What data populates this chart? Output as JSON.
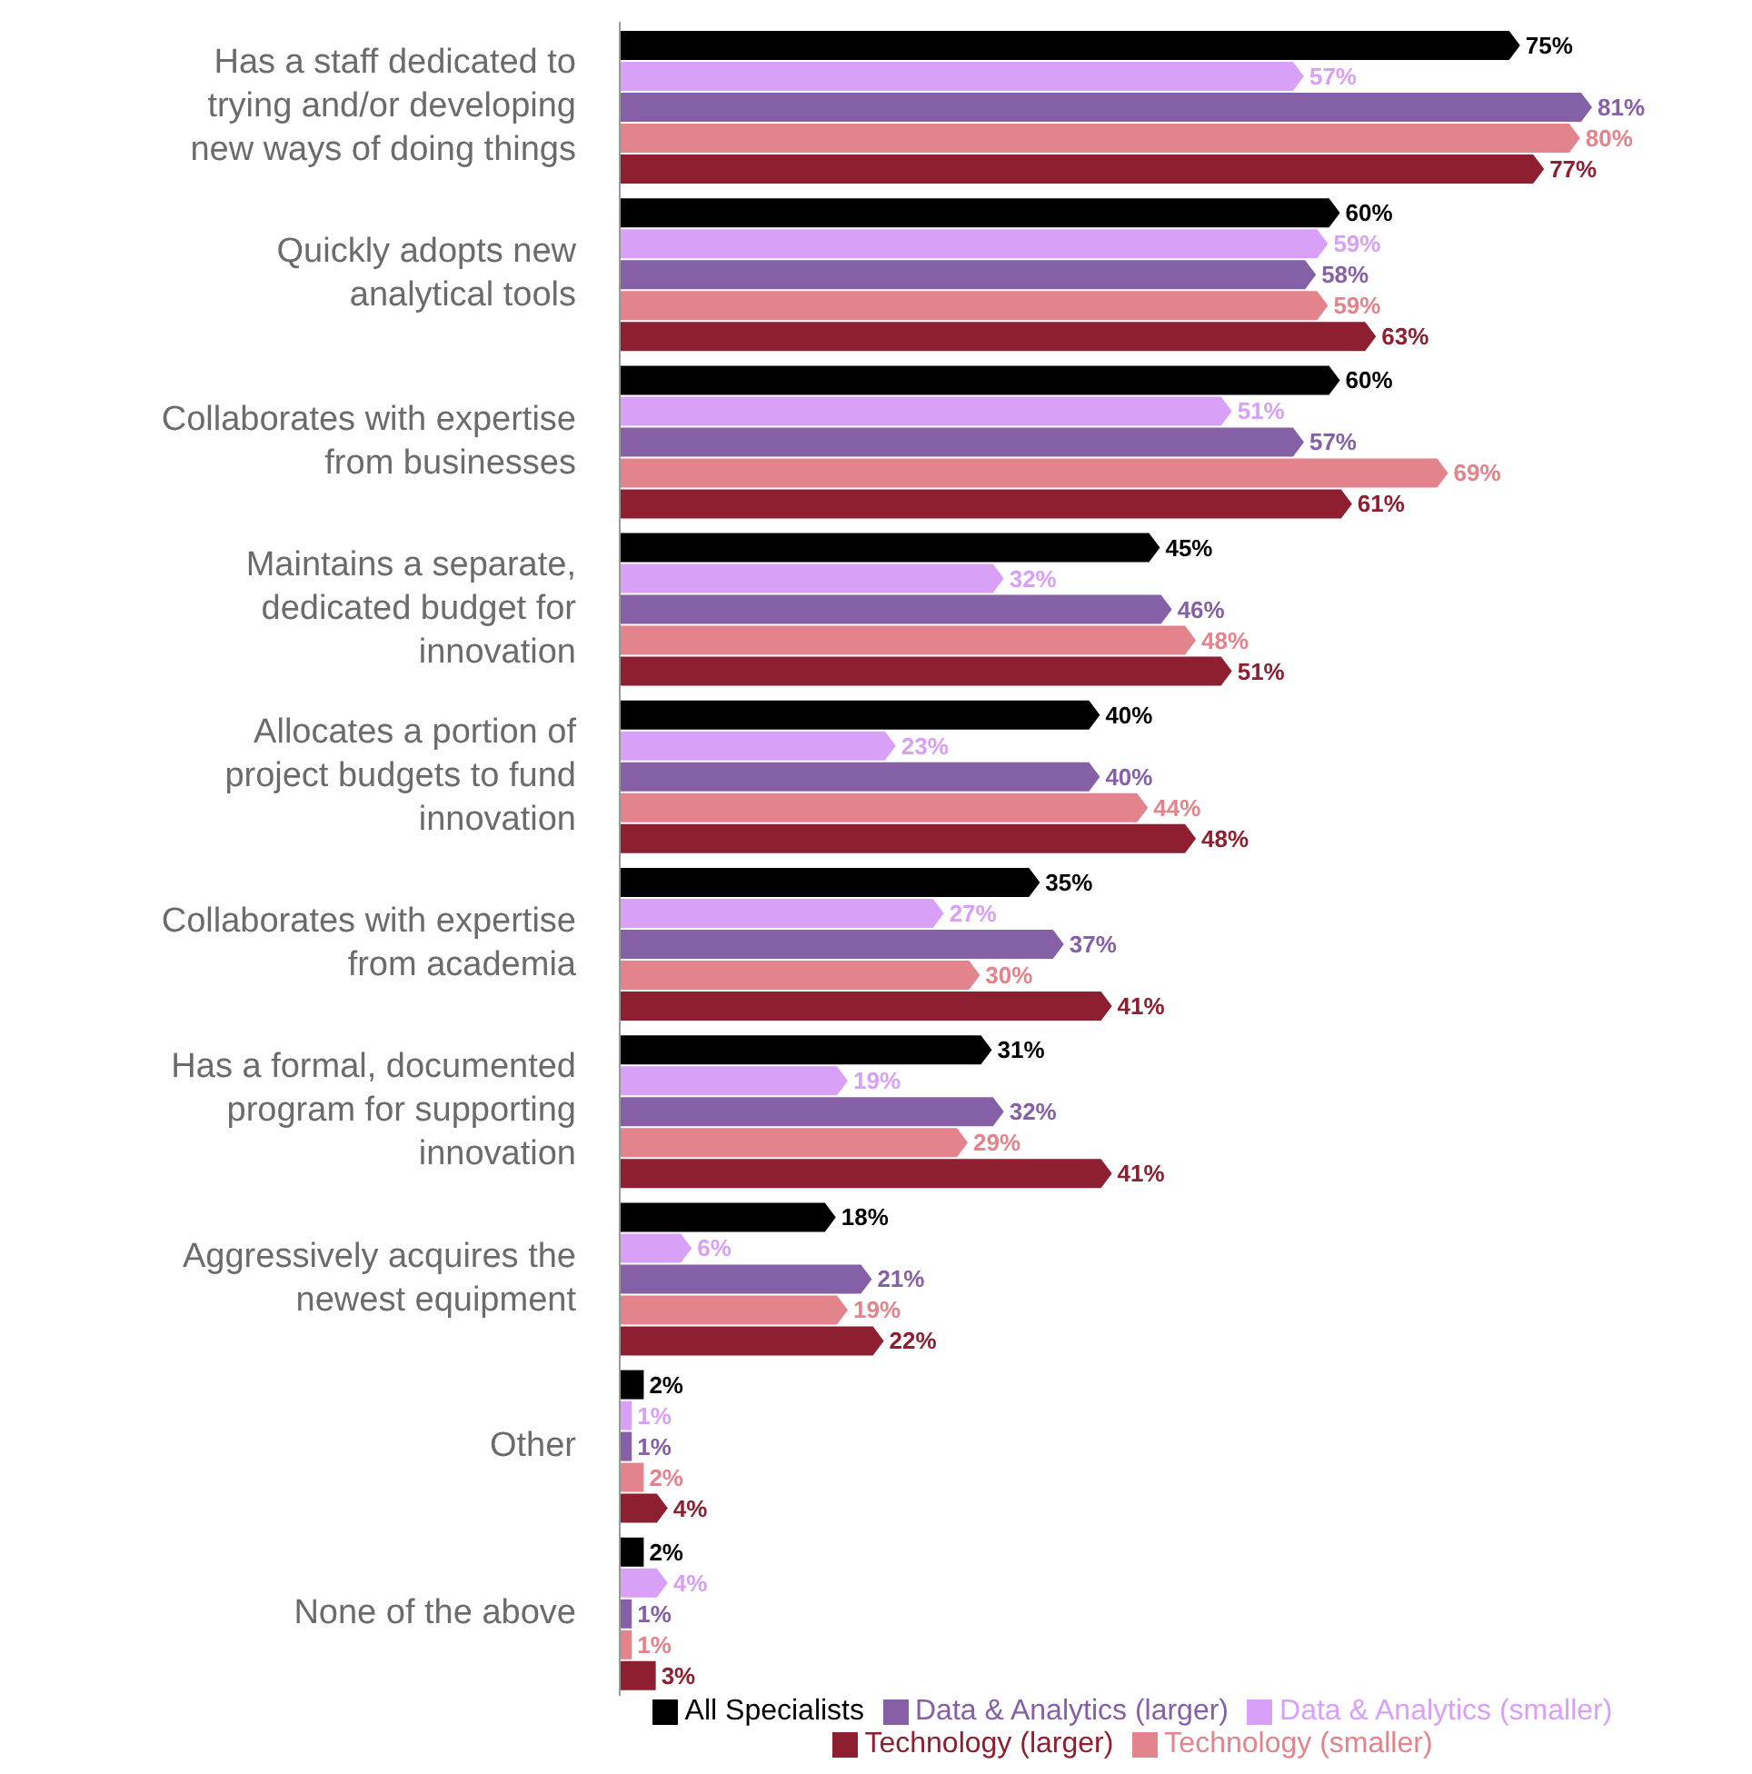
{
  "chart_data": {
    "type": "bar",
    "orientation": "horizontal",
    "legend": "bottom",
    "categories": [
      "Has a staff dedicated to trying and/or developing new ways of doing things",
      "Quickly adopts new analytical tools",
      "Collaborates with expertise from businesses",
      "Maintains a separate, dedicated budget for innovation",
      "Allocates a portion of project budgets to fund innovation",
      "Collaborates with expertise from academia",
      "Has a formal, documented program for supporting innovation",
      "Aggressively acquires the newest equipment",
      "Other",
      "None of the above"
    ],
    "series": [
      {
        "name": "All Specialists",
        "color": "#000000",
        "values": [
          75,
          60,
          60,
          45,
          40,
          35,
          31,
          18,
          2,
          2
        ],
        "value_labels": [
          "75%",
          "60%",
          "60%",
          "45%",
          "40%",
          "35%",
          "31%",
          "18%",
          "2%",
          "2%"
        ]
      },
      {
        "name": "Data & Analytics (smaller)",
        "color": "#d9a0f7",
        "values": [
          57,
          59,
          51,
          32,
          23,
          27,
          19,
          6,
          1,
          4
        ],
        "value_labels": [
          "57%",
          "59%",
          "51%",
          "32%",
          "23%",
          "27%",
          "19%",
          "6%",
          "1%",
          "4%"
        ]
      },
      {
        "name": "Data & Analytics (larger)",
        "color": "#8660a6",
        "values": [
          81,
          58,
          57,
          46,
          40,
          37,
          32,
          21,
          1,
          1
        ],
        "value_labels": [
          "81%",
          "58%",
          "57%",
          "46%",
          "40%",
          "37%",
          "32%",
          "21%",
          "1%",
          "1%"
        ]
      },
      {
        "name": "Technology (smaller)",
        "color": "#e3838c",
        "values": [
          80,
          59,
          69,
          48,
          44,
          30,
          29,
          19,
          2,
          1
        ],
        "value_labels": [
          "80%",
          "59%",
          "69%",
          "48%",
          "44%",
          "30%",
          "29%",
          "19%",
          "2%",
          "1%"
        ]
      },
      {
        "name": "Technology (larger)",
        "color": "#8e1f30",
        "values": [
          77,
          63,
          61,
          51,
          48,
          41,
          41,
          22,
          4,
          3
        ],
        "value_labels": [
          "77%",
          "63%",
          "61%",
          "51%",
          "48%",
          "41%",
          "41%",
          "22%",
          "4%",
          "3%"
        ]
      }
    ]
  }
}
